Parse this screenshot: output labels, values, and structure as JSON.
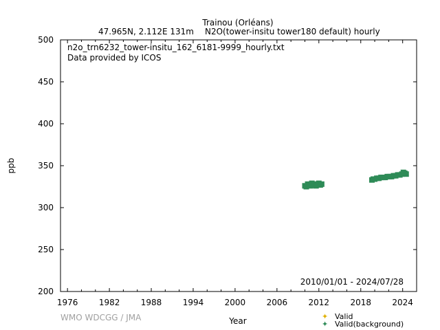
{
  "chart_data": {
    "type": "scatter",
    "title": "Trainou (Orléans)",
    "subtitle_location": "47.965N, 2.112E 131m",
    "subtitle_parameter": "N2O(tower-insitu tower180 default) hourly",
    "file_label": "n2o_trn6232_tower-insitu_162_6181-9999_hourly.txt",
    "provider_label": "Data provided by ICOS",
    "date_range": "2010/01/01 - 2024/07/28",
    "xlabel": "Year",
    "ylabel": "ppb",
    "xlim": [
      1975,
      2026
    ],
    "ylim": [
      200,
      500
    ],
    "x_ticks": [
      1976,
      1982,
      1988,
      1994,
      2000,
      2006,
      2012,
      2018,
      2024
    ],
    "y_ticks": [
      200,
      250,
      300,
      350,
      400,
      450,
      500
    ],
    "grid": false,
    "legend_position": "bottom-right",
    "series": [
      {
        "name": "Valid",
        "color": "#e0b000",
        "points": []
      },
      {
        "name": "Valid(background)",
        "color": "#2e8b57",
        "points": [
          [
            2010.0,
            326
          ],
          [
            2010.2,
            325
          ],
          [
            2010.4,
            328
          ],
          [
            2010.6,
            327
          ],
          [
            2010.8,
            326
          ],
          [
            2011.0,
            329
          ],
          [
            2011.2,
            327
          ],
          [
            2011.4,
            328
          ],
          [
            2011.6,
            326
          ],
          [
            2011.8,
            328
          ],
          [
            2012.0,
            329
          ],
          [
            2012.2,
            327
          ],
          [
            2012.4,
            328
          ],
          [
            2019.6,
            333
          ],
          [
            2019.8,
            334
          ],
          [
            2020.0,
            334
          ],
          [
            2020.3,
            335
          ],
          [
            2020.6,
            335
          ],
          [
            2020.9,
            336
          ],
          [
            2021.2,
            336
          ],
          [
            2021.5,
            336
          ],
          [
            2021.8,
            337
          ],
          [
            2022.1,
            337
          ],
          [
            2022.4,
            337
          ],
          [
            2022.7,
            338
          ],
          [
            2023.0,
            338
          ],
          [
            2023.3,
            339
          ],
          [
            2023.6,
            339
          ],
          [
            2023.9,
            340
          ],
          [
            2024.1,
            342
          ],
          [
            2024.3,
            341
          ],
          [
            2024.5,
            340
          ]
        ]
      }
    ]
  },
  "footer": {
    "credit": "WMO WDCGG / JMA"
  }
}
